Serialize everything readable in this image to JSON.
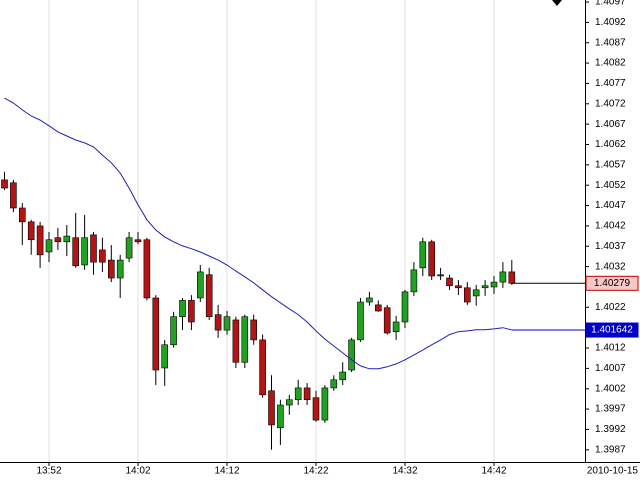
{
  "chart_data": {
    "type": "candlestick",
    "categories": [
      null,
      null,
      null,
      null,
      null,
      "13:52",
      null,
      null,
      null,
      null,
      null,
      null,
      null,
      null,
      null,
      "14:02",
      null,
      null,
      null,
      null,
      null,
      null,
      null,
      null,
      null,
      "14:12",
      null,
      null,
      null,
      null,
      null,
      null,
      null,
      null,
      null,
      "14:22",
      null,
      null,
      null,
      null,
      null,
      null,
      null,
      null,
      null,
      "14:32",
      null,
      null,
      null,
      null,
      null,
      null,
      null,
      null,
      null,
      "14:42",
      null,
      null
    ],
    "open": [
      1.40533,
      1.40526,
      1.40464,
      1.4043,
      1.4042,
      1.40356,
      1.40391,
      1.40381,
      1.40391,
      1.40324,
      1.40398,
      1.40361,
      1.40336,
      1.40292,
      1.40341,
      1.40386,
      1.40386,
      1.40243,
      1.40071,
      1.40128,
      1.40197,
      1.40237,
      1.40243,
      1.403,
      1.40202,
      1.40164,
      1.40189,
      1.40085,
      1.40189,
      1.4014,
      1.40015,
      1.39924,
      1.3998,
      1.39993,
      1.40022,
      1.39998,
      1.39943,
      1.40022,
      1.40042,
      1.40066,
      1.4014,
      1.40233,
      1.40226,
      1.40219,
      1.4016,
      1.40184,
      1.40258,
      1.40317,
      1.40381,
      1.403,
      1.40292,
      1.40273,
      1.40268,
      1.40248,
      1.40268,
      1.4027,
      1.40282,
      1.40307
    ],
    "high": [
      1.40553,
      1.40533,
      1.40476,
      1.40435,
      1.4043,
      1.40405,
      1.40415,
      1.40422,
      1.40452,
      1.40447,
      1.40405,
      1.40391,
      1.40373,
      1.40349,
      1.40405,
      1.40405,
      1.40391,
      1.4025,
      1.4014,
      1.40209,
      1.40243,
      1.4025,
      1.40324,
      1.40317,
      1.40226,
      1.40211,
      1.40197,
      1.40202,
      1.40202,
      1.40153,
      1.40053,
      1.39993,
      1.40005,
      1.40042,
      1.40034,
      1.40015,
      1.40029,
      1.40053,
      1.40085,
      1.40145,
      1.40243,
      1.40258,
      1.40237,
      1.40226,
      1.40199,
      1.40263,
      1.40331,
      1.40391,
      1.40386,
      1.40317,
      1.403,
      1.40287,
      1.40282,
      1.40275,
      1.40287,
      1.40297,
      1.40331,
      1.40336
    ],
    "low": [
      1.40508,
      1.40454,
      1.40373,
      1.40349,
      1.40317,
      1.40331,
      1.40361,
      1.40346,
      1.40317,
      1.40312,
      1.403,
      1.40307,
      1.40282,
      1.40243,
      1.40331,
      1.40375,
      1.40237,
      1.40029,
      1.40027,
      1.40121,
      1.40164,
      1.40164,
      1.40233,
      1.40189,
      1.40145,
      1.40153,
      1.40071,
      1.40071,
      1.40128,
      1.39998,
      1.3987,
      1.39882,
      1.39956,
      1.3998,
      1.3998,
      1.39939,
      1.39936,
      1.40015,
      1.40029,
      1.40061,
      1.40135,
      1.40224,
      1.40209,
      1.40153,
      1.4014,
      1.40169,
      1.40248,
      1.40297,
      1.40287,
      1.40287,
      1.40263,
      1.4025,
      1.40226,
      1.40224,
      1.40248,
      1.40253,
      1.40268,
      1.40275
    ],
    "close": [
      1.40513,
      1.40464,
      1.4043,
      1.40386,
      1.40349,
      1.40386,
      1.40381,
      1.40395,
      1.40322,
      1.40391,
      1.40331,
      1.40331,
      1.40292,
      1.40336,
      1.40391,
      1.40381,
      1.40243,
      1.40066,
      1.40128,
      1.40197,
      1.40237,
      1.40184,
      1.40307,
      1.40197,
      1.40164,
      1.40197,
      1.40085,
      1.40197,
      1.4014,
      1.40005,
      1.39931,
      1.3998,
      1.39993,
      1.40022,
      1.39993,
      1.39943,
      1.40022,
      1.40042,
      1.40061,
      1.4014,
      1.40233,
      1.40243,
      1.40211,
      1.40157,
      1.40184,
      1.40258,
      1.40312,
      1.40381,
      1.40297,
      1.40297,
      1.40273,
      1.40268,
      1.40233,
      1.40263,
      1.40273,
      1.40282,
      1.40307,
      1.40279
    ],
    "up_color": "#22a022",
    "down_color": "#b41414",
    "series": [
      {
        "type": "line",
        "color": "#2020b0",
        "values": [
          1.40734,
          1.40722,
          1.40705,
          1.4069,
          1.4068,
          1.40666,
          1.40651,
          1.40641,
          1.40631,
          1.40624,
          1.40614,
          1.40594,
          1.40575,
          1.4055,
          1.40513,
          1.40472,
          1.40435,
          1.4041,
          1.40393,
          1.40381,
          1.40371,
          1.40364,
          1.40356,
          1.40346,
          1.40336,
          1.40324,
          1.40309,
          1.40295,
          1.4028,
          1.40263,
          1.40246,
          1.40231,
          1.40216,
          1.40202,
          1.40184,
          1.40162,
          1.40142,
          1.40125,
          1.40108,
          1.40091,
          1.40076,
          1.40069,
          1.40069,
          1.40074,
          1.40081,
          1.40091,
          1.40103,
          1.40115,
          1.40128,
          1.4014,
          1.40153,
          1.4016,
          1.40162,
          1.40165,
          1.40165,
          1.40167,
          1.4017,
          1.401642
        ]
      }
    ],
    "ylim": [
      1.3984,
      1.40975
    ],
    "yticks": [
      1.3987,
      1.3992,
      1.3997,
      1.4002,
      1.4007,
      1.4012,
      1.4017,
      1.4022,
      1.4027,
      1.4032,
      1.4037,
      1.4042,
      1.4047,
      1.4052,
      1.4057,
      1.4062,
      1.4067,
      1.4072,
      1.4077,
      1.4082,
      1.4087,
      1.4092,
      1.4097
    ],
    "grid": true,
    "date_label": "2010-10-15",
    "price_markers": [
      {
        "value": 1.40279,
        "fill": "#f6c8c8",
        "border": "#c00000",
        "text_color": "#000000"
      },
      {
        "value": 1.401642,
        "fill": "#0000c8",
        "border": "#0000c8",
        "text_color": "#ffffff"
      }
    ]
  }
}
